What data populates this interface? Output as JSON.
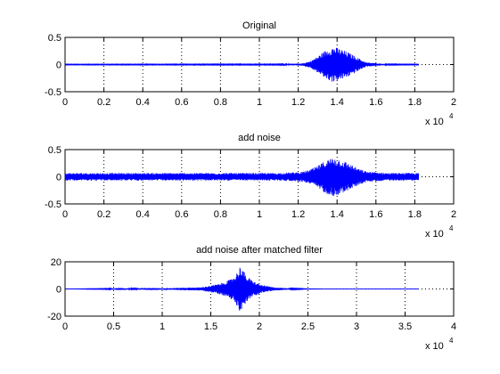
{
  "figure": {
    "background": "#ffffff",
    "line_color": "#0000ff",
    "axis_color": "#000000"
  },
  "chart_data": [
    {
      "type": "line",
      "title": "Original",
      "xlabel": "",
      "ylabel": "",
      "xlim": [
        0,
        20000
      ],
      "ylim": [
        -0.5,
        0.5
      ],
      "grid": true,
      "xticks": [
        0,
        2000,
        4000,
        6000,
        8000,
        10000,
        12000,
        14000,
        16000,
        18000,
        20000
      ],
      "xtick_labels": [
        "0",
        "0.2",
        "0.4",
        "0.6",
        "0.8",
        "1",
        "1.2",
        "1.4",
        "1.6",
        "1.8",
        "2"
      ],
      "yticks": [
        -0.5,
        0,
        0.5
      ],
      "ytick_labels": [
        "-0.5",
        "0",
        "0.5"
      ],
      "exponent_base": "x 10",
      "exponent_power": "4",
      "signal_length": 18200,
      "envelope": [
        [
          0,
          0.006
        ],
        [
          11000,
          0.008
        ],
        [
          12200,
          0.02
        ],
        [
          12600,
          0.06
        ],
        [
          13000,
          0.15
        ],
        [
          13400,
          0.26
        ],
        [
          13800,
          0.33
        ],
        [
          14100,
          0.3
        ],
        [
          14600,
          0.22
        ],
        [
          15100,
          0.12
        ],
        [
          15500,
          0.04
        ],
        [
          16200,
          0.02
        ],
        [
          16600,
          0.008
        ],
        [
          18200,
          0.006
        ]
      ]
    },
    {
      "type": "line",
      "title": "add noise",
      "xlabel": "",
      "ylabel": "",
      "xlim": [
        0,
        20000
      ],
      "ylim": [
        -0.5,
        0.5
      ],
      "grid": true,
      "xticks": [
        0,
        2000,
        4000,
        6000,
        8000,
        10000,
        12000,
        14000,
        16000,
        18000,
        20000
      ],
      "xtick_labels": [
        "0",
        "0.2",
        "0.4",
        "0.6",
        "0.8",
        "1",
        "1.2",
        "1.4",
        "1.6",
        "1.8",
        "2"
      ],
      "yticks": [
        -0.5,
        0,
        0.5
      ],
      "ytick_labels": [
        "-0.5",
        "0",
        "0.5"
      ],
      "exponent_base": "x 10",
      "exponent_power": "4",
      "signal_length": 18200,
      "envelope": [
        [
          0,
          0.07
        ],
        [
          11000,
          0.07
        ],
        [
          12200,
          0.09
        ],
        [
          12600,
          0.13
        ],
        [
          13000,
          0.2
        ],
        [
          13400,
          0.3
        ],
        [
          13800,
          0.36
        ],
        [
          14100,
          0.33
        ],
        [
          14600,
          0.25
        ],
        [
          15100,
          0.15
        ],
        [
          15500,
          0.1
        ],
        [
          16200,
          0.08
        ],
        [
          16600,
          0.07
        ],
        [
          18200,
          0.07
        ]
      ]
    },
    {
      "type": "line",
      "title": "add noise after matched filter",
      "xlabel": "",
      "ylabel": "",
      "xlim": [
        0,
        40000
      ],
      "ylim": [
        -20,
        20
      ],
      "grid": true,
      "xticks": [
        0,
        5000,
        10000,
        15000,
        20000,
        25000,
        30000,
        35000,
        40000
      ],
      "xtick_labels": [
        "0",
        "0.5",
        "1",
        "1.5",
        "2",
        "2.5",
        "3",
        "3.5",
        "4"
      ],
      "yticks": [
        -20,
        0,
        20
      ],
      "ytick_labels": [
        "-20",
        "0",
        "20"
      ],
      "exponent_base": "x 10",
      "exponent_power": "4",
      "signal_length": 36400,
      "envelope": [
        [
          0,
          0.05
        ],
        [
          4500,
          0.3
        ],
        [
          5500,
          0.8
        ],
        [
          7000,
          0.4
        ],
        [
          9000,
          0.8
        ],
        [
          10500,
          0.5
        ],
        [
          12000,
          0.9
        ],
        [
          14000,
          1.2
        ],
        [
          15000,
          2.5
        ],
        [
          16000,
          4
        ],
        [
          17000,
          7
        ],
        [
          17600,
          11
        ],
        [
          18100,
          18
        ],
        [
          18600,
          10
        ],
        [
          19300,
          6
        ],
        [
          20200,
          3
        ],
        [
          21500,
          1.2
        ],
        [
          23000,
          0.5
        ],
        [
          25000,
          0.15
        ],
        [
          27000,
          0.05
        ],
        [
          36400,
          0.05
        ]
      ]
    }
  ]
}
